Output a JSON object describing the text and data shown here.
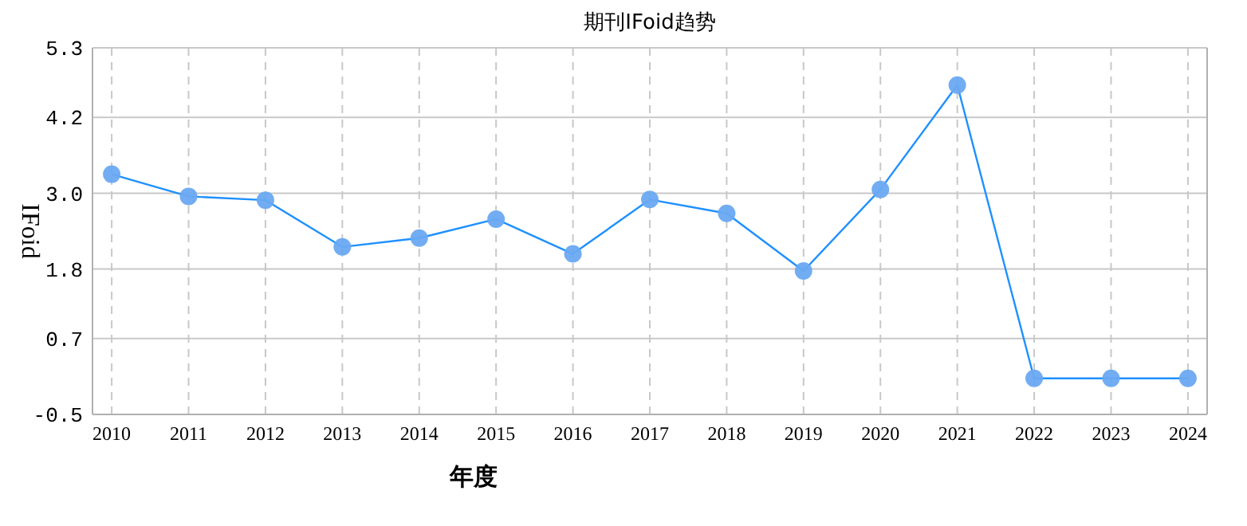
{
  "chart_data": {
    "type": "line",
    "title": "期刊IFoid趋势",
    "xlabel": "年度",
    "ylabel": "IFoid",
    "categories": [
      "2010",
      "2011",
      "2012",
      "2013",
      "2014",
      "2015",
      "2016",
      "2017",
      "2018",
      "2019",
      "2020",
      "2021",
      "2022",
      "2023",
      "2024"
    ],
    "series": [
      {
        "color": "#1e90ff",
        "values": [
          3.3,
          2.95,
          2.89,
          2.15,
          2.29,
          2.59,
          2.04,
          2.9,
          2.68,
          1.77,
          3.06,
          4.71,
          0.07,
          0.07,
          0.07
        ]
      }
    ],
    "ylim": [
      -0.5,
      5.3
    ],
    "yticks": [
      -0.5,
      0.7,
      1.8,
      {
        "value": 3.0,
        "label": "3.0"
      },
      4.2,
      5.3
    ],
    "grid": true,
    "marker": "circle",
    "line_style": "solid"
  }
}
